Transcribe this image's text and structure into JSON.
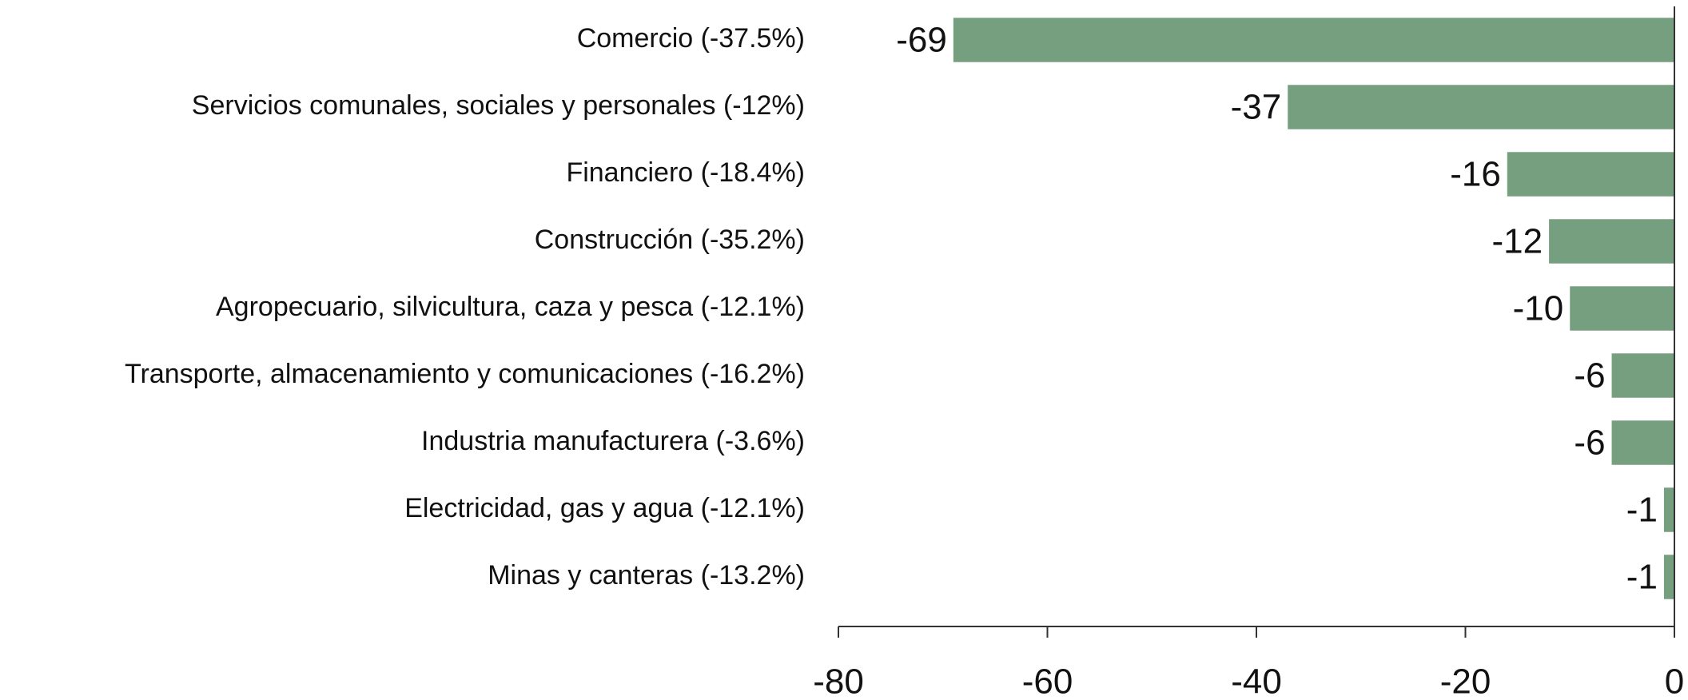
{
  "chart_data": {
    "type": "barh",
    "categories": [
      "Comercio (-37.5%)",
      "Servicios comunales, sociales y personales (-12%)",
      "Financiero (-18.4%)",
      "Construcción (-35.2%)",
      "Agropecuario, silvicultura, caza y pesca (-12.1%)",
      "Transporte, almacenamiento y comunicaciones (-16.2%)",
      "Industria manufacturera (-3.6%)",
      "Electricidad, gas y agua (-12.1%)",
      "Minas y canteras (-13.2%)"
    ],
    "values": [
      -69,
      -37,
      -16,
      -12,
      -10,
      -6,
      -6,
      -1,
      -1
    ],
    "color": "#769f7f",
    "xlim": [
      -80,
      0
    ],
    "xticks": [
      -80,
      -60,
      -40,
      -20,
      0
    ],
    "grid": false
  }
}
